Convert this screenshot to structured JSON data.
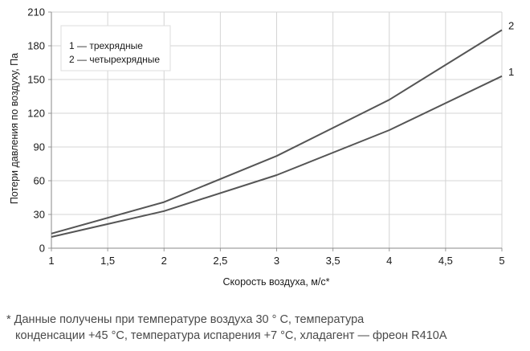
{
  "chart_data": {
    "type": "line",
    "xlabel": "Скорость воздуха, м/с*",
    "ylabel": "Потери давления по воздуху, Па",
    "xlim": [
      1,
      5
    ],
    "ylim": [
      0,
      210
    ],
    "xticks": [
      1,
      1.5,
      2,
      2.5,
      3,
      3.5,
      4,
      4.5,
      5
    ],
    "xtick_labels": [
      "1",
      "1,5",
      "2",
      "2,5",
      "3",
      "3,5",
      "4",
      "4,5",
      "5"
    ],
    "yticks": [
      0,
      30,
      60,
      90,
      120,
      150,
      180,
      210
    ],
    "ytick_labels": [
      "0",
      "30",
      "60",
      "90",
      "120",
      "150",
      "180",
      "210"
    ],
    "grid": true,
    "legend_position": "top-left",
    "legend": [
      "1 — трехрядные",
      "2 — четырехрядные"
    ],
    "series": [
      {
        "label": "1",
        "x": [
          1,
          2,
          3,
          4,
          5
        ],
        "values": [
          10,
          33,
          65,
          105,
          153
        ]
      },
      {
        "label": "2",
        "x": [
          1,
          2,
          3,
          4,
          5
        ],
        "values": [
          13,
          41,
          82,
          132,
          194
        ]
      }
    ],
    "line_color": "#555555"
  },
  "footnote": {
    "line1": "* Данные получены при температуре воздуха 30 ° С, температура",
    "line2": "конденсации +45 °С, температура испарения +7 °С, хладагент — фреон R410A"
  }
}
